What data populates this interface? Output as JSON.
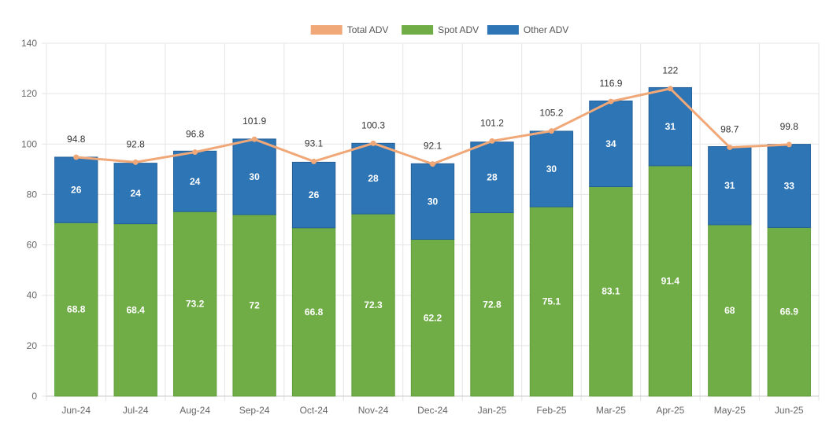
{
  "chart_data": {
    "type": "bar",
    "stacked": true,
    "categories": [
      "Jun-24",
      "Jul-24",
      "Aug-24",
      "Sep-24",
      "Oct-24",
      "Nov-24",
      "Dec-24",
      "Jan-25",
      "Feb-25",
      "Mar-25",
      "Apr-25",
      "May-25",
      "Jun-25"
    ],
    "series": [
      {
        "name": "Spot ADV",
        "type": "bar",
        "color": "#70ad47",
        "values": [
          68.8,
          68.4,
          73.2,
          72,
          66.8,
          72.3,
          62.2,
          72.8,
          75.1,
          83.1,
          91.4,
          68,
          66.9
        ]
      },
      {
        "name": "Other ADV",
        "type": "bar",
        "color": "#2e75b6",
        "values": [
          26,
          24,
          24,
          30,
          26,
          28,
          30,
          28,
          30,
          34,
          31,
          31,
          33
        ]
      },
      {
        "name": "Total ADV",
        "type": "line",
        "color": "#f0a878",
        "values": [
          94.8,
          92.8,
          96.8,
          101.9,
          93.1,
          100.3,
          92.1,
          101.2,
          105.2,
          116.9,
          122,
          98.7,
          99.8
        ]
      }
    ],
    "legend": [
      "Total ADV",
      "Spot ADV",
      "Other ADV"
    ],
    "legend_position": "top-center",
    "y_ticks": [
      "0",
      "20",
      "40",
      "60",
      "80",
      "100",
      "120",
      "140"
    ],
    "ylim": [
      0,
      140
    ],
    "grid": true,
    "title": "",
    "xlabel": "",
    "ylabel": ""
  }
}
